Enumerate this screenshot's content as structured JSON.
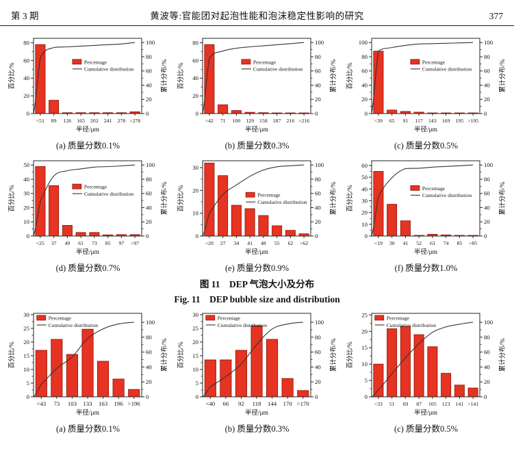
{
  "header": {
    "issue": "第 3 期",
    "title": "黄波等:官能团对起泡性能和泡沫稳定性影响的研究",
    "page": "377"
  },
  "figure_caption": {
    "zh": "图 11　DEP 气泡大小及分布",
    "en": "Fig. 11  DEP bubble size and distribution"
  },
  "axis": {
    "left": "百分比/%",
    "right": "累计分布/%",
    "x": "半径/μm"
  },
  "legend": {
    "bar": "Percentage",
    "line": "Cumulative distribution"
  },
  "colors": {
    "bar": "#e63322",
    "bar_border": "#8f1408",
    "line": "#333333",
    "frame": "#222222"
  },
  "chart_data": [
    {
      "id": "fig11a",
      "row": 1,
      "type": "bar+line",
      "caption": "(a) 质量分数0.1%",
      "categories": [
        "<51",
        "89",
        "126",
        "165",
        "202",
        "241",
        "278",
        ">278"
      ],
      "bars": [
        78,
        15,
        1,
        1,
        1,
        1,
        1,
        2
      ],
      "cumulative": [
        78,
        93,
        94,
        95,
        96,
        97,
        98,
        100
      ],
      "ylim": [
        0,
        85
      ],
      "yticks": [
        0,
        20,
        40,
        60,
        80
      ],
      "y2lim": [
        0,
        106
      ],
      "y2ticks": [
        0,
        20,
        40,
        60,
        80,
        100
      ],
      "legend_pos": "center",
      "legend_frac": [
        0.36,
        0.28
      ]
    },
    {
      "id": "fig11b",
      "row": 1,
      "type": "bar+line",
      "caption": "(b) 质量分数0.3%",
      "categories": [
        "<42",
        "71",
        "100",
        "129",
        "158",
        "187",
        "216",
        ">216"
      ],
      "bars": [
        78,
        10,
        3.5,
        1.5,
        1,
        0.5,
        0.5,
        0.5
      ],
      "cumulative": [
        78,
        88,
        92,
        94,
        95.5,
        97,
        98.5,
        100
      ],
      "ylim": [
        0,
        85
      ],
      "yticks": [
        0,
        20,
        40,
        60,
        80
      ],
      "y2lim": [
        0,
        106
      ],
      "y2ticks": [
        0,
        20,
        40,
        60,
        80,
        100
      ],
      "legend_pos": "center",
      "legend_frac": [
        0.36,
        0.28
      ]
    },
    {
      "id": "fig11c",
      "row": 1,
      "type": "bar+line",
      "caption": "(c) 质量分数0.5%",
      "categories": [
        "<39",
        "65",
        "91",
        "117",
        "143",
        "169",
        "195",
        ">195"
      ],
      "bars": [
        88,
        5,
        3,
        2,
        0.7,
        0.5,
        0.4,
        0.4
      ],
      "cumulative": [
        88,
        93,
        96,
        98,
        98.5,
        99,
        99.5,
        100
      ],
      "ylim": [
        0,
        106
      ],
      "yticks": [
        0,
        20,
        40,
        60,
        80,
        100
      ],
      "y2lim": [
        0,
        106
      ],
      "y2ticks": [
        0,
        20,
        40,
        60,
        80,
        100
      ],
      "legend_pos": "center",
      "legend_frac": [
        0.36,
        0.28
      ]
    },
    {
      "id": "fig11d",
      "row": 2,
      "type": "bar+line",
      "caption": "(d) 质量分数0.7%",
      "categories": [
        "<25",
        "37",
        "49",
        "61",
        "73",
        "85",
        "97",
        ">97"
      ],
      "bars": [
        49,
        35.5,
        7.5,
        2.5,
        2.5,
        0.8,
        1,
        1
      ],
      "cumulative": [
        49,
        84.5,
        92,
        94.5,
        97,
        97.8,
        98.8,
        100
      ],
      "ylim": [
        0,
        53
      ],
      "yticks": [
        0,
        10,
        20,
        30,
        40,
        50
      ],
      "y2lim": [
        0,
        106
      ],
      "y2ticks": [
        0,
        20,
        40,
        60,
        80,
        100
      ],
      "legend_pos": "center",
      "legend_frac": [
        0.36,
        0.31
      ]
    },
    {
      "id": "fig11e",
      "row": 2,
      "type": "bar+line",
      "caption": "(e) 质量分数0.9%",
      "categories": [
        "<20",
        "27",
        "34",
        "41",
        "48",
        "55",
        "62",
        ">62"
      ],
      "bars": [
        32,
        26.5,
        13.5,
        12,
        9,
        4.5,
        2.5,
        1
      ],
      "cumulative": [
        32,
        58.5,
        72,
        84,
        93,
        97.5,
        99,
        100
      ],
      "ylim": [
        0,
        33
      ],
      "yticks": [
        0,
        10,
        20,
        30
      ],
      "y2lim": [
        0,
        106
      ],
      "y2ticks": [
        0,
        20,
        40,
        60,
        80,
        100
      ],
      "legend_pos": "center",
      "legend_frac": [
        0.4,
        0.42
      ]
    },
    {
      "id": "fig11f",
      "row": 2,
      "type": "bar+line",
      "caption": "(f) 质量分数1.0%",
      "categories": [
        "<19",
        "30",
        "41",
        "52",
        "63",
        "74",
        "85",
        ">85"
      ],
      "bars": [
        55,
        27,
        13,
        0.5,
        1.5,
        1,
        0.5,
        0.5
      ],
      "cumulative": [
        55,
        82,
        95,
        95.5,
        97,
        98,
        99,
        100
      ],
      "ylim": [
        0,
        64
      ],
      "yticks": [
        0,
        10,
        20,
        30,
        40,
        50,
        60
      ],
      "y2lim": [
        0,
        106
      ],
      "y2ticks": [
        0,
        20,
        40,
        60,
        80,
        100
      ],
      "legend_pos": "center",
      "legend_frac": [
        0.36,
        0.33
      ]
    },
    {
      "id": "fig12a",
      "row": 3,
      "type": "bar+line",
      "caption": "(a) 质量分数0.1%",
      "categories": [
        "<43",
        "73",
        "103",
        "133",
        "163",
        "196",
        ">196"
      ],
      "bars": [
        17,
        21,
        15.5,
        24.7,
        13,
        6.5,
        2.7
      ],
      "cumulative": [
        17,
        38,
        53.5,
        78.2,
        91.2,
        97.7,
        100
      ],
      "ylim": [
        0,
        30.5
      ],
      "yticks": [
        0,
        5,
        10,
        15,
        20,
        25,
        30
      ],
      "y2lim": [
        0,
        112
      ],
      "y2ticks": [
        0,
        20,
        40,
        60,
        80,
        100
      ],
      "legend_pos": "top-left",
      "legend_frac": [
        0.03,
        0.02
      ]
    },
    {
      "id": "fig12b",
      "row": 3,
      "type": "bar+line",
      "caption": "(b) 质量分数0.3%",
      "categories": [
        "<40",
        "66",
        "92",
        "118",
        "144",
        "170",
        ">170"
      ],
      "bars": [
        13.5,
        13.5,
        17,
        26,
        21,
        6.7,
        2.3
      ],
      "cumulative": [
        13.5,
        27,
        44,
        70,
        91,
        97.7,
        100
      ],
      "ylim": [
        0,
        30.5
      ],
      "yticks": [
        0,
        5,
        10,
        15,
        20,
        25,
        30
      ],
      "y2lim": [
        0,
        112
      ],
      "y2ticks": [
        0,
        20,
        40,
        60,
        80,
        100
      ],
      "legend_pos": "top-left",
      "legend_frac": [
        0.03,
        0.02
      ]
    },
    {
      "id": "fig12c",
      "row": 3,
      "type": "bar+line",
      "caption": "(c) 质量分数0.5%",
      "categories": [
        "<33",
        "51",
        "69",
        "87",
        "105",
        "123",
        "141",
        ">141"
      ],
      "bars": [
        10,
        20.8,
        21.5,
        19,
        15.3,
        7.2,
        3.6,
        2.7
      ],
      "cumulative": [
        10,
        30.8,
        52.3,
        71.3,
        86.6,
        93.8,
        97.4,
        100
      ],
      "ylim": [
        0,
        25.5
      ],
      "yticks": [
        0,
        5,
        10,
        15,
        20,
        25
      ],
      "y2lim": [
        0,
        112
      ],
      "y2ticks": [
        0,
        20,
        40,
        60,
        80,
        100
      ],
      "legend_pos": "top-left",
      "legend_frac": [
        0.03,
        0.02
      ]
    }
  ]
}
